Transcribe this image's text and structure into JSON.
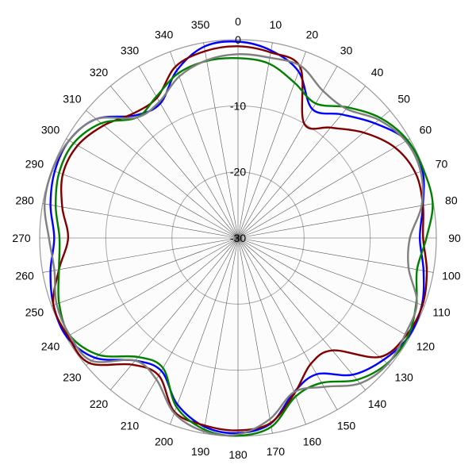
{
  "chart_data": {
    "type": "polar-line",
    "title": "",
    "angle_labels": [
      "0",
      "10",
      "20",
      "30",
      "40",
      "50",
      "60",
      "70",
      "80",
      "90",
      "100",
      "110",
      "120",
      "130",
      "140",
      "150",
      "160",
      "170",
      "180",
      "190",
      "200",
      "210",
      "220",
      "230",
      "240",
      "250",
      "260",
      "270",
      "280",
      "290",
      "300",
      "310",
      "320",
      "330",
      "340",
      "350"
    ],
    "radial_tick_labels": [
      "0",
      "-10",
      "-20",
      "-30"
    ],
    "radial_range": [
      -30,
      0
    ],
    "angle_direction": "clockwise",
    "angle_zero": "top",
    "grid": true,
    "angles_deg": [
      0,
      10,
      20,
      30,
      40,
      50,
      60,
      70,
      80,
      90,
      100,
      110,
      120,
      130,
      140,
      150,
      160,
      170,
      180,
      190,
      200,
      210,
      220,
      230,
      240,
      250,
      260,
      270,
      280,
      290,
      300,
      310,
      320,
      330,
      340,
      350
    ],
    "series": [
      {
        "color": "#0000ff",
        "values": [
          -0.3,
          -1.2,
          -3.2,
          -7.5,
          -5.6,
          -3.0,
          -0.5,
          -0.3,
          -1.6,
          -2.5,
          -1.5,
          -0.4,
          -0.2,
          -1.3,
          -3.0,
          -6.2,
          -5.2,
          -1.5,
          -0.5,
          -1.0,
          -3.2,
          -6.8,
          -5.8,
          -1.8,
          -0.1,
          -0.3,
          -1.2,
          -2.2,
          -1.2,
          -0.5,
          -0.5,
          -2.0,
          -5.8,
          -6.5,
          -3.0,
          -0.6
        ]
      },
      {
        "color": "#800000",
        "values": [
          -1.0,
          -1.5,
          -2.5,
          -10.0,
          -8.2,
          -5.2,
          -2.6,
          -1.4,
          -1.6,
          -2.0,
          -1.0,
          -0.3,
          -0.6,
          -2.0,
          -7.8,
          -8.0,
          -5.0,
          -1.6,
          -0.9,
          -1.2,
          -2.0,
          -6.0,
          -5.0,
          -0.6,
          -0.3,
          -0.3,
          -2.5,
          -4.3,
          -3.0,
          -1.8,
          -2.0,
          -3.5,
          -5.4,
          -5.5,
          -2.4,
          -1.3
        ]
      },
      {
        "color": "#008000",
        "values": [
          -2.8,
          -3.2,
          -5.0,
          -6.5,
          -4.2,
          -1.8,
          -0.4,
          -0.1,
          -0.1,
          -1.5,
          -2.5,
          -1.3,
          -0.3,
          -0.5,
          -2.0,
          -4.7,
          -4.5,
          -1.0,
          -0.1,
          -0.6,
          -2.8,
          -7.3,
          -6.5,
          -2.5,
          -0.6,
          -1.2,
          -2.5,
          -3.0,
          -2.0,
          -1.2,
          -1.3,
          -3.0,
          -6.2,
          -5.3,
          -3.5,
          -2.8
        ]
      },
      {
        "color": "#808080",
        "values": [
          -2.2,
          -2.3,
          -2.3,
          -4.3,
          -4.5,
          -2.2,
          -0.7,
          -0.6,
          -1.8,
          -4.0,
          -3.8,
          -1.2,
          -0.8,
          -0.4,
          -1.3,
          -4.0,
          -5.2,
          -2.2,
          -0.3,
          -0.3,
          -1.8,
          -5.3,
          -5.8,
          -1.1,
          -0.6,
          -0.8,
          -1.8,
          -1.4,
          -0.3,
          -0.1,
          -0.5,
          -2.0,
          -6.2,
          -6.2,
          -4.0,
          -2.7
        ]
      }
    ]
  }
}
